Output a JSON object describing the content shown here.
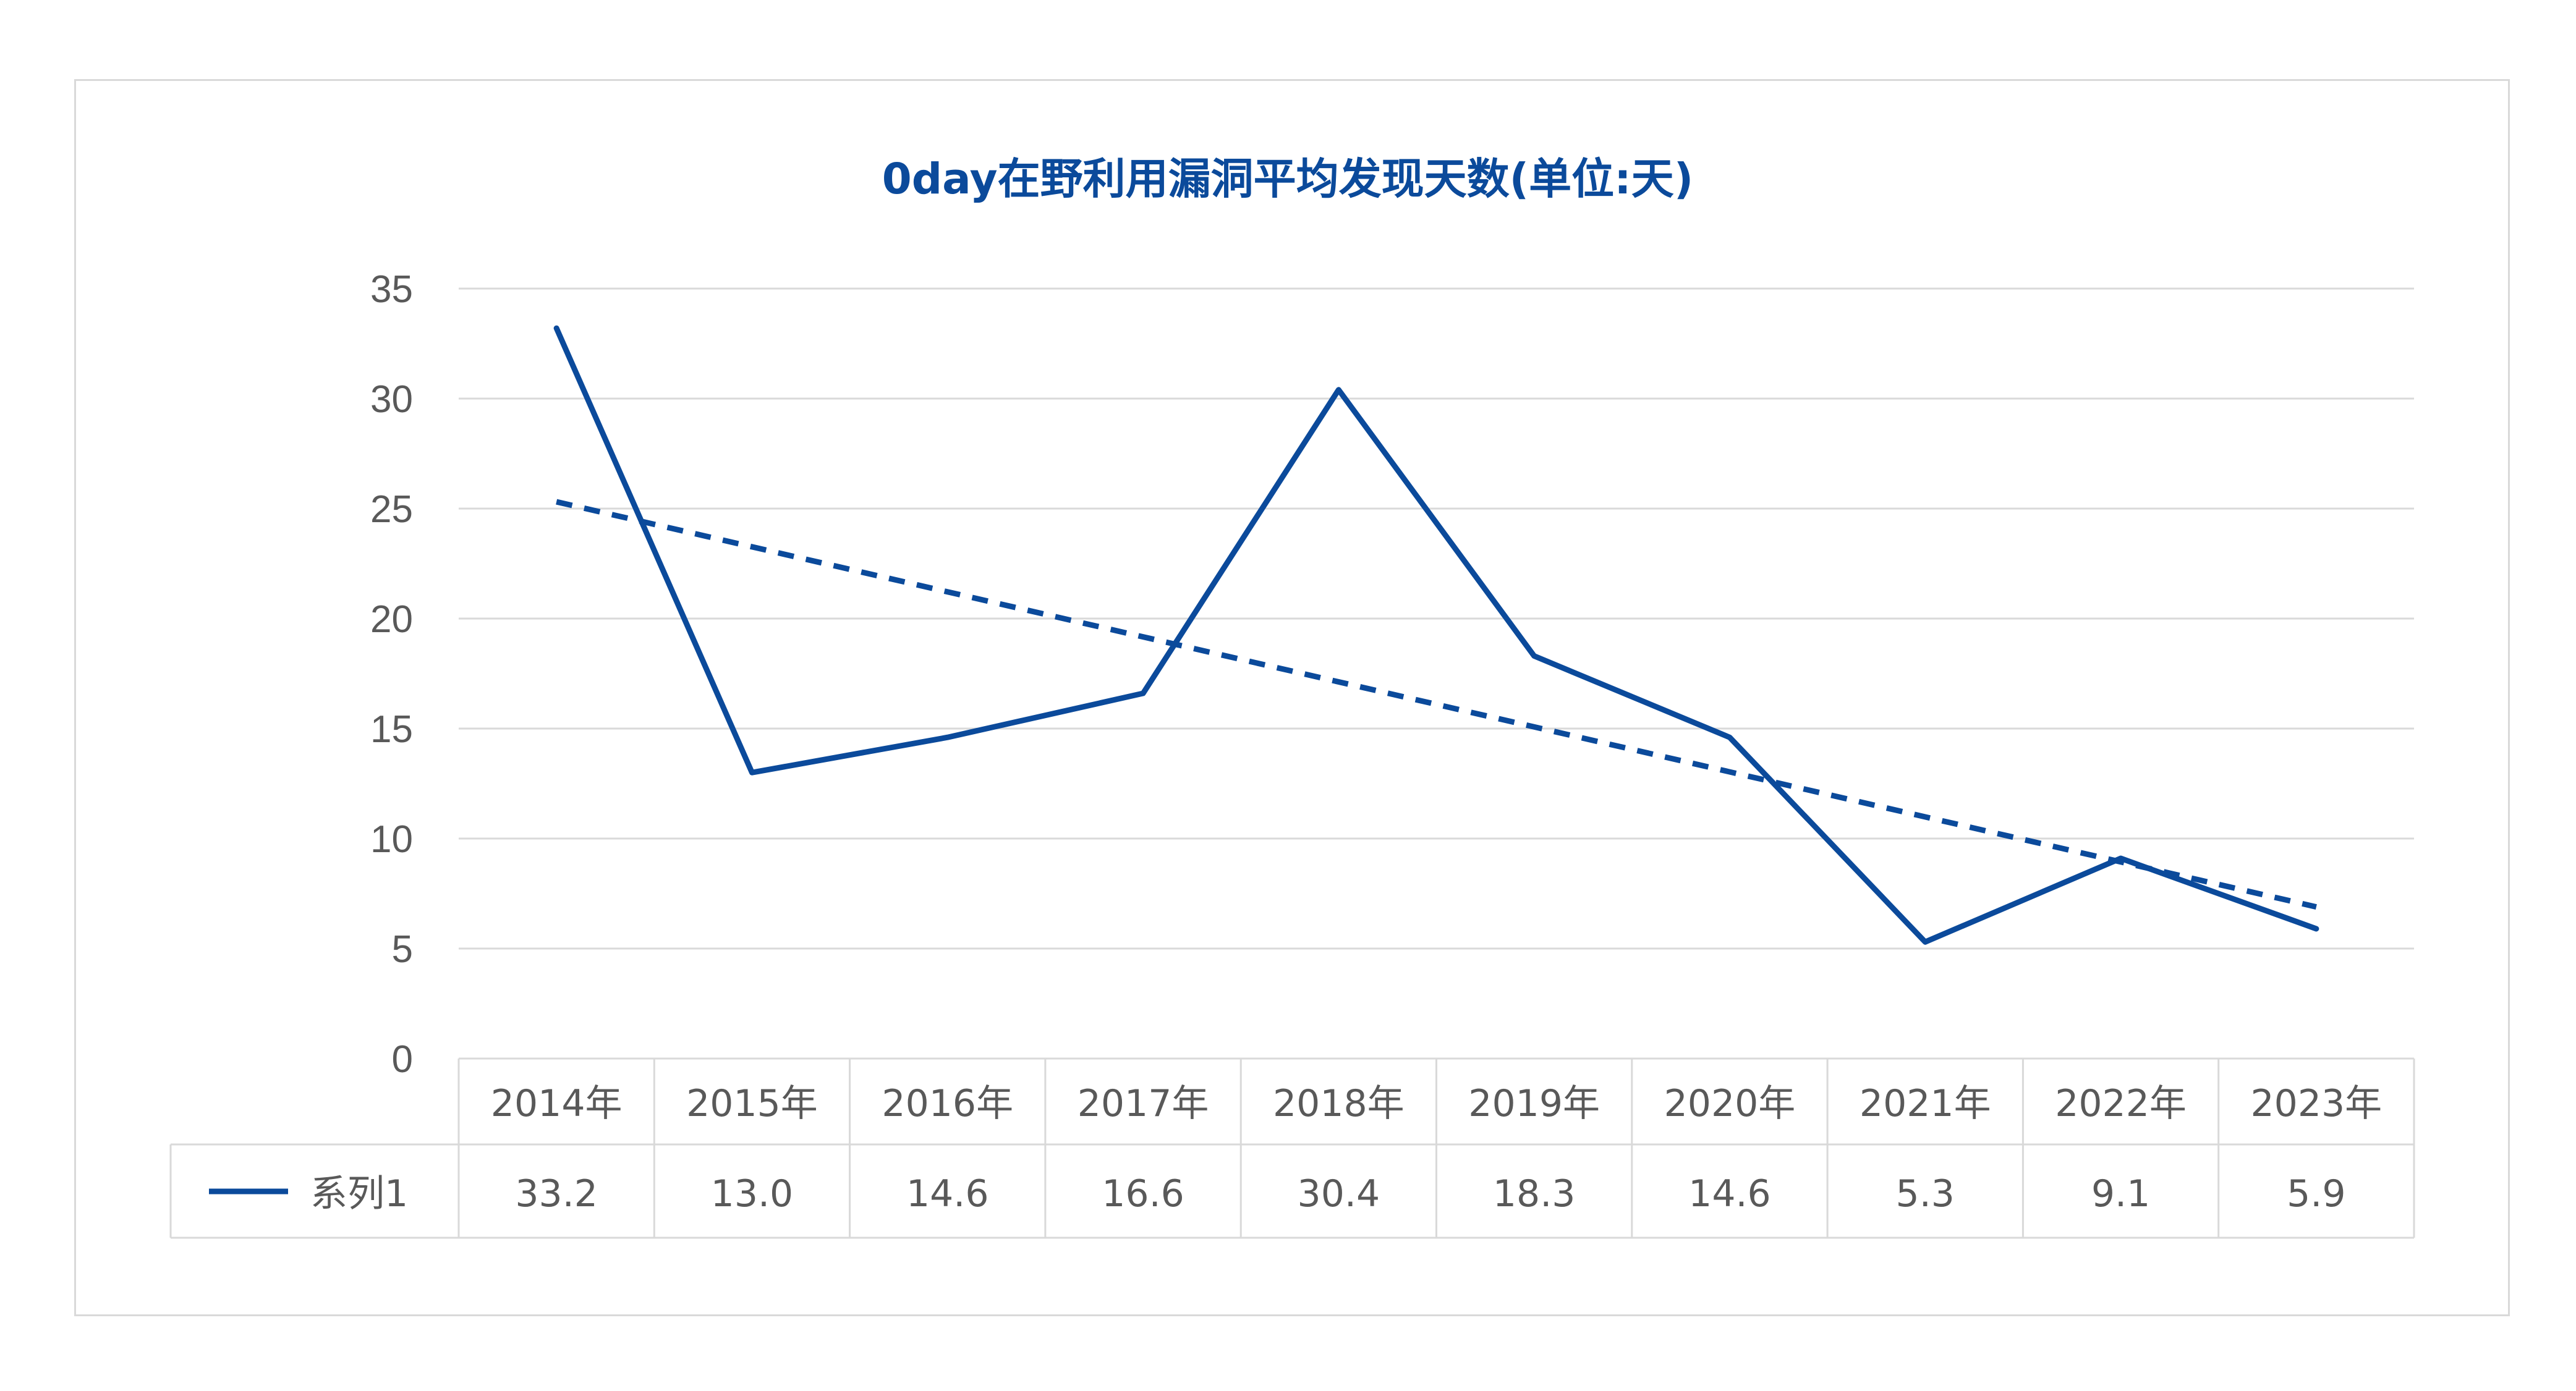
{
  "chart_data": {
    "type": "line",
    "title": "0day在野利用漏洞平均发现天数(单位:天)",
    "categories": [
      "2014年",
      "2015年",
      "2016年",
      "2017年",
      "2018年",
      "2019年",
      "2020年",
      "2021年",
      "2022年",
      "2023年"
    ],
    "series": [
      {
        "name": "系列1",
        "values": [
          33.2,
          13.0,
          14.6,
          16.6,
          30.4,
          18.3,
          14.6,
          5.3,
          9.1,
          5.9
        ],
        "value_labels": [
          "33.2",
          "13.0",
          "14.6",
          "16.6",
          "30.4",
          "18.3",
          "14.6",
          "5.3",
          "9.1",
          "5.9"
        ],
        "color": "#0b4a9b",
        "trendline": "linear"
      }
    ],
    "y_ticks": [
      "0",
      "5",
      "10",
      "15",
      "20",
      "25",
      "30",
      "35"
    ],
    "ylim": [
      0,
      35
    ],
    "grid": true,
    "data_table": true
  }
}
